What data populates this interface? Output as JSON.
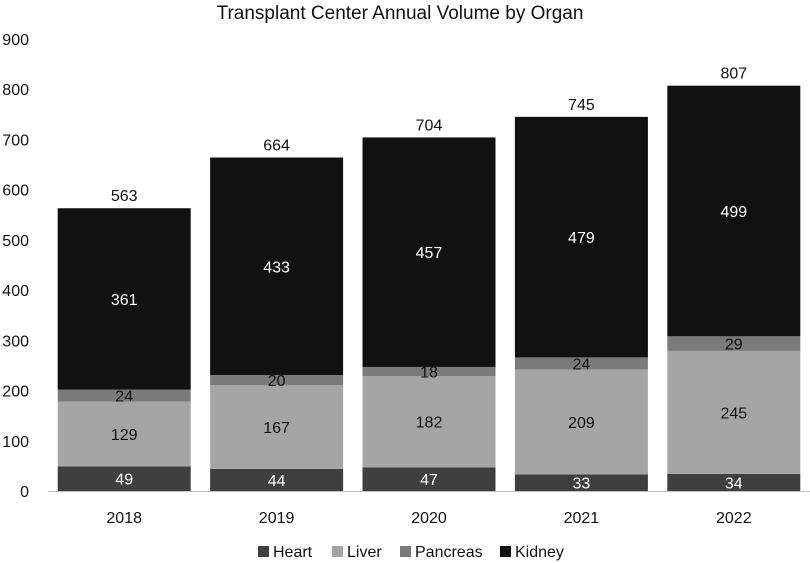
{
  "chart_data": {
    "type": "bar",
    "stacked": true,
    "title": "Transplant Center Annual Volume by Organ",
    "xlabel": "",
    "ylabel": "",
    "categories": [
      "2018",
      "2019",
      "2020",
      "2021",
      "2022"
    ],
    "ylim": [
      0,
      900
    ],
    "yticks": [
      "0",
      "100",
      "200",
      "300",
      "400",
      "500",
      "600",
      "700",
      "800",
      "900"
    ],
    "grid": false,
    "legend_position": "bottom",
    "series": [
      {
        "name": "Heart",
        "color": "#3f3f3f",
        "label_color": "#ffffff",
        "values": [
          49,
          44,
          47,
          33,
          34
        ]
      },
      {
        "name": "Liver",
        "color": "#a5a5a5",
        "label_color": "#111111",
        "values": [
          129,
          167,
          182,
          209,
          245
        ]
      },
      {
        "name": "Pancreas",
        "color": "#7a7a7a",
        "label_color": "#111111",
        "values": [
          24,
          20,
          18,
          24,
          29
        ]
      },
      {
        "name": "Kidney",
        "color": "#111111",
        "label_color": "#ffffff",
        "values": [
          361,
          433,
          457,
          479,
          499
        ]
      }
    ],
    "totals": [
      563,
      664,
      704,
      745,
      807
    ]
  }
}
